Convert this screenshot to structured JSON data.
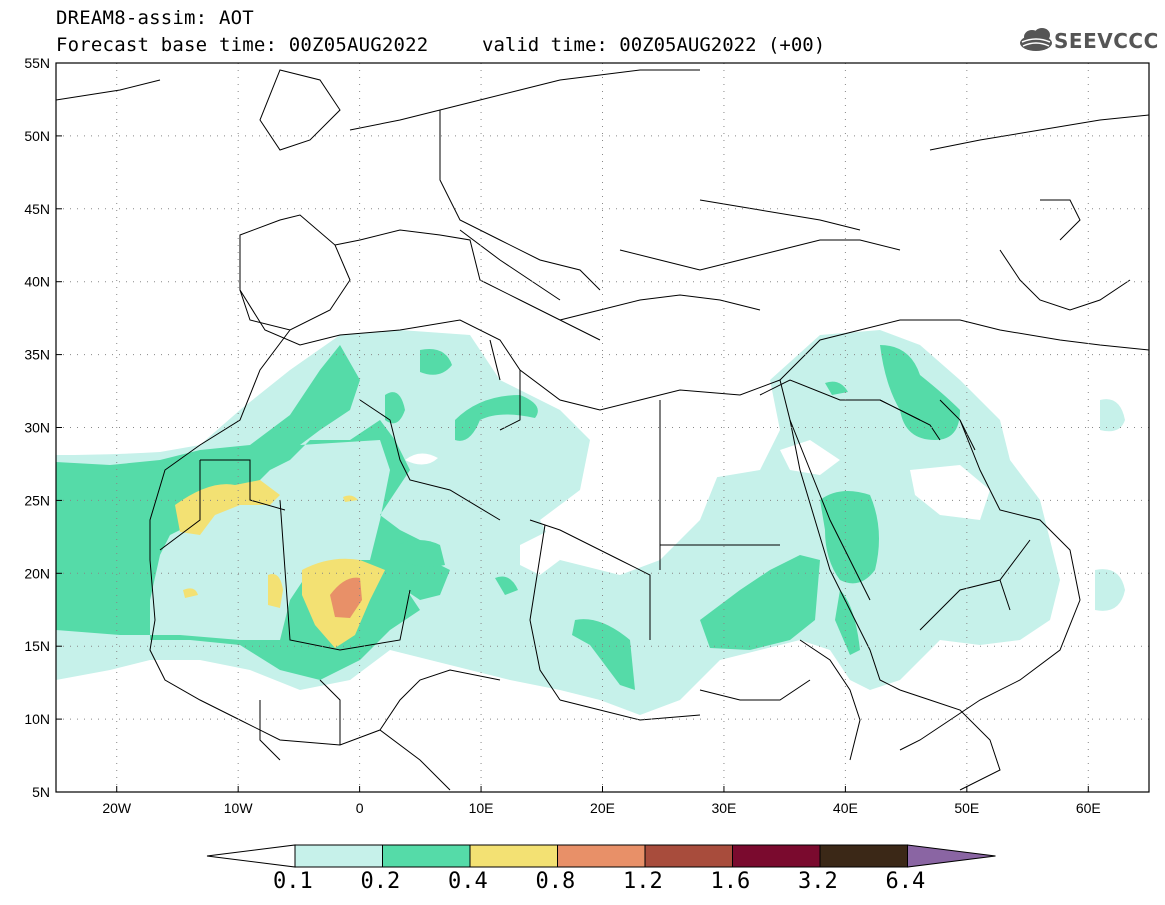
{
  "header": {
    "title_line1": "DREAM8-assim: AOT",
    "title_line2": "Forecast base time: 00Z05AUG2022",
    "valid_time": "valid time: 00Z05AUG2022 (+00)",
    "logo_text": "SEEVCCC"
  },
  "axes": {
    "lat_labels": [
      "55N",
      "50N",
      "45N",
      "40N",
      "35N",
      "30N",
      "25N",
      "20N",
      "15N",
      "10N",
      "5N"
    ],
    "lon_labels": [
      "20W",
      "10W",
      "0",
      "10E",
      "20E",
      "30E",
      "40E",
      "50E",
      "60E"
    ]
  },
  "colorbar": {
    "labels": [
      "0.1",
      "0.2",
      "0.4",
      "0.8",
      "1.2",
      "1.6",
      "3.2",
      "6.4"
    ],
    "colors": [
      "#ffffff",
      "#c6f1ea",
      "#55dba8",
      "#f3e173",
      "#e89068",
      "#a84c3c",
      "#7a0a2e",
      "#3b2817",
      "#8a65a3"
    ]
  }
}
